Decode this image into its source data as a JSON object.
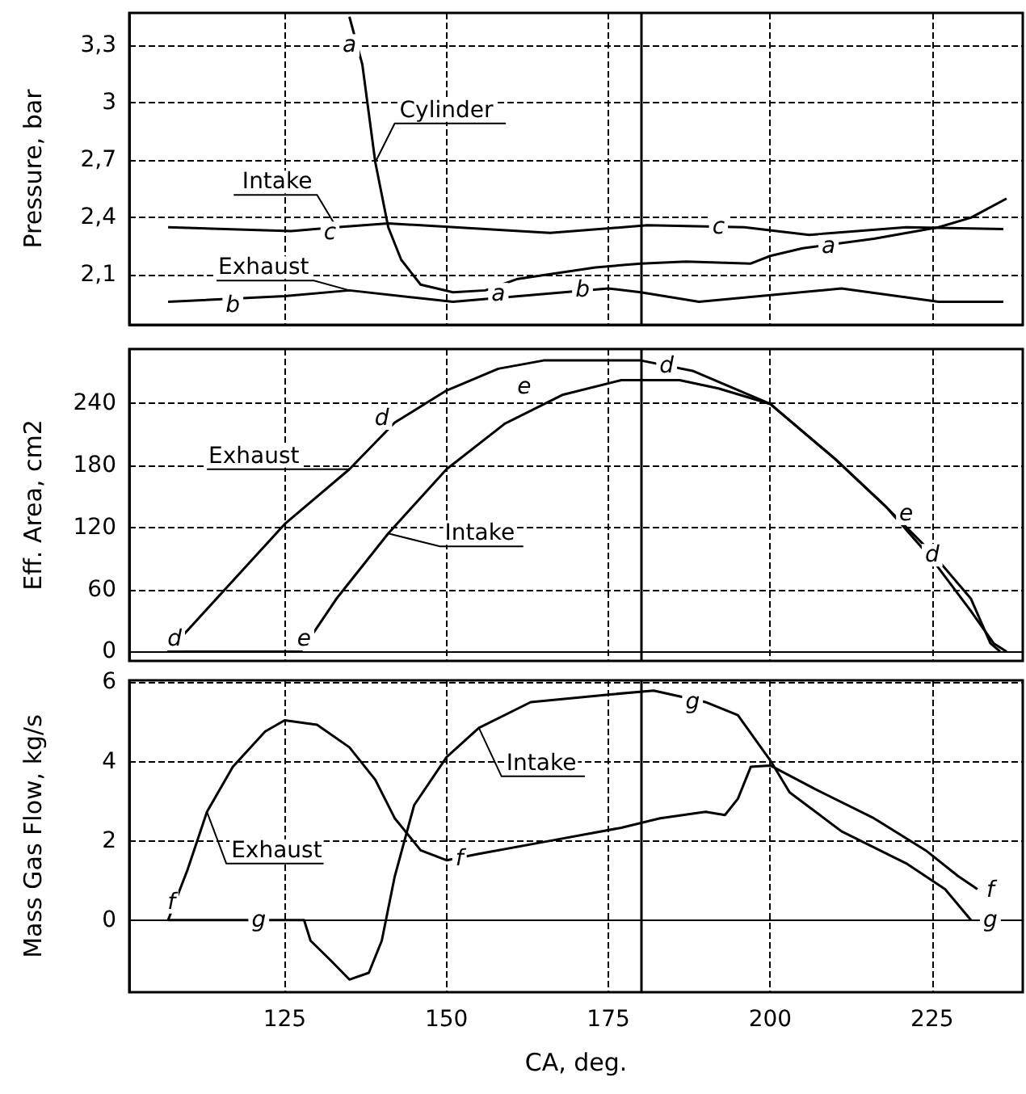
{
  "chart_data": [
    {
      "type": "line",
      "ylabel": "Pressure, bar",
      "xlim": [
        101,
        239
      ],
      "xticks": [
        125,
        150,
        175,
        200,
        225
      ],
      "ylim": [
        1.84,
        3.47
      ],
      "yticks": [
        {
          "value": 2.1,
          "label": "2,1"
        },
        {
          "value": 2.4,
          "label": "2,4"
        },
        {
          "value": 2.7,
          "label": "2,7"
        },
        3,
        {
          "value": 3.3,
          "label": "3,3"
        }
      ],
      "tick_labels": "y",
      "grid": true,
      "marker": "none",
      "line_style": "solid",
      "ref_lines": [
        {
          "axis": "x",
          "value": 180,
          "color": "#000000",
          "line_style": "solid"
        }
      ],
      "series": [
        {
          "color": "#000000",
          "x": [
            135,
            137,
            139,
            141,
            143,
            146,
            151,
            156,
            161,
            173,
            180,
            187,
            197,
            200,
            205,
            216,
            226,
            231,
            236.5
          ],
          "values": [
            3.45,
            3.2,
            2.69,
            2.35,
            2.18,
            2.05,
            2.01,
            2.02,
            2.08,
            2.14,
            2.16,
            2.17,
            2.16,
            2.2,
            2.24,
            2.29,
            2.35,
            2.4,
            2.5
          ]
        },
        {
          "color": "#000000",
          "x": [
            107,
            126,
            133,
            141,
            166,
            181,
            196,
            206,
            221,
            236
          ],
          "values": [
            2.35,
            2.33,
            2.35,
            2.37,
            2.32,
            2.36,
            2.35,
            2.31,
            2.35,
            2.34
          ]
        },
        {
          "color": "#000000",
          "x": [
            107,
            125,
            135,
            151,
            175,
            180,
            189,
            211,
            226,
            236
          ],
          "values": [
            1.96,
            1.99,
            2.02,
            1.96,
            2.03,
            2.01,
            1.96,
            2.03,
            1.96,
            1.96
          ]
        }
      ],
      "annotations": [
        {
          "text": "Cylinder",
          "x": 139,
          "y": 2.69
        },
        {
          "text": "Intake",
          "x": 133,
          "y": 2.35
        },
        {
          "text": "Exhaust",
          "x": 135,
          "y": 2.02
        },
        {
          "text": "a",
          "x": 135,
          "y": 3.3
        },
        {
          "text": "a",
          "x": 158,
          "y": 2.0
        },
        {
          "text": "a",
          "x": 209,
          "y": 2.25
        },
        {
          "text": "b",
          "x": 117,
          "y": 1.94
        },
        {
          "text": "b",
          "x": 171,
          "y": 2.02
        },
        {
          "text": "c",
          "x": 132,
          "y": 2.32
        },
        {
          "text": "c",
          "x": 192,
          "y": 2.35
        }
      ]
    },
    {
      "type": "line",
      "ylabel": "Eff. Area, cm2",
      "xlim": [
        101,
        239
      ],
      "xticks": [
        125,
        150,
        175,
        200,
        225
      ],
      "ylim": [
        -9,
        292
      ],
      "yticks": [
        0,
        60,
        120,
        180,
        240
      ],
      "tick_labels": "y",
      "grid": true,
      "marker": "none",
      "line_style": "solid",
      "ref_lines": [
        {
          "axis": "x",
          "value": 180,
          "color": "#000000",
          "line_style": "solid"
        }
      ],
      "series": [
        {
          "color": "#000000",
          "x": [
            107,
            125,
            135,
            142,
            150,
            158,
            165,
            180,
            188,
            200,
            210,
            218,
            225,
            231,
            234.5,
            236.5
          ],
          "values": [
            0,
            123,
            176,
            221,
            252,
            273,
            281,
            281,
            271,
            239,
            186,
            139,
            89,
            39,
            8,
            0
          ]
        },
        {
          "color": "#000000",
          "x": [
            107,
            127.5,
            133,
            141,
            150,
            159,
            168,
            177,
            186,
            192,
            200,
            210,
            218,
            225,
            231,
            234,
            235.5
          ],
          "values": [
            0,
            0,
            51,
            114,
            176,
            220,
            248,
            262,
            262,
            254,
            239,
            186,
            139,
            95,
            51,
            8,
            0
          ]
        }
      ],
      "annotations": [
        {
          "text": "Exhaust",
          "x": 135,
          "y": 176
        },
        {
          "text": "Intake",
          "x": 141,
          "y": 114
        },
        {
          "text": "d",
          "x": 108,
          "y": 12
        },
        {
          "text": "e",
          "x": 128,
          "y": 12
        },
        {
          "text": "d",
          "x": 140,
          "y": 225
        },
        {
          "text": "e",
          "x": 162,
          "y": 255
        },
        {
          "text": "d",
          "x": 184,
          "y": 276
        },
        {
          "text": "e",
          "x": 221,
          "y": 133
        },
        {
          "text": "d",
          "x": 225,
          "y": 93
        }
      ]
    },
    {
      "type": "line",
      "xlabel": "CA, deg.",
      "ylabel": "Mass Gas Flow, kg/s",
      "xlim": [
        101,
        239
      ],
      "xticks": [
        125,
        150,
        175,
        200,
        225
      ],
      "ylim": [
        -1.82,
        6.05
      ],
      "yticks": [
        0,
        2,
        4,
        6
      ],
      "grid": true,
      "marker": "none",
      "line_style": "solid",
      "ref_lines": [
        {
          "axis": "x",
          "value": 180,
          "color": "#000000",
          "line_style": "solid"
        }
      ],
      "series": [
        {
          "color": "#000000",
          "x": [
            107,
            110,
            113,
            117,
            122,
            125,
            130,
            135,
            139,
            142,
            146,
            150,
            155,
            166,
            177,
            183,
            190,
            193,
            195,
            197,
            200,
            207,
            216,
            224,
            229,
            232
          ],
          "values": [
            0,
            1.27,
            2.73,
            3.87,
            4.76,
            5.04,
            4.93,
            4.36,
            3.54,
            2.57,
            1.76,
            1.51,
            1.67,
            2.0,
            2.33,
            2.57,
            2.73,
            2.65,
            3.06,
            3.87,
            3.9,
            3.3,
            2.57,
            1.76,
            1.11,
            0.78
          ]
        },
        {
          "color": "#000000",
          "x": [
            107,
            128,
            129,
            132,
            135,
            138,
            140,
            142,
            145,
            150,
            155,
            163,
            175,
            182,
            190,
            195,
            200,
            203,
            211,
            221,
            227,
            231
          ],
          "values": [
            0,
            0,
            -0.52,
            -1.0,
            -1.5,
            -1.33,
            -0.52,
            1.1,
            2.9,
            4.11,
            4.85,
            5.5,
            5.69,
            5.79,
            5.5,
            5.17,
            4.03,
            3.22,
            2.24,
            1.43,
            0.78,
            0
          ]
        }
      ],
      "annotations": [
        {
          "text": "Exhaust",
          "x": 113,
          "y": 2.73
        },
        {
          "text": "Intake",
          "x": 155,
          "y": 4.85
        },
        {
          "text": "f",
          "x": 107.5,
          "y": 0.45
        },
        {
          "text": "g",
          "x": 121,
          "y": 0
        },
        {
          "text": "f",
          "x": 152,
          "y": 1.55
        },
        {
          "text": "g",
          "x": 188,
          "y": 5.5
        },
        {
          "text": "f",
          "x": 234,
          "y": 0.75
        },
        {
          "text": "g",
          "x": 234,
          "y": 0
        }
      ]
    }
  ]
}
